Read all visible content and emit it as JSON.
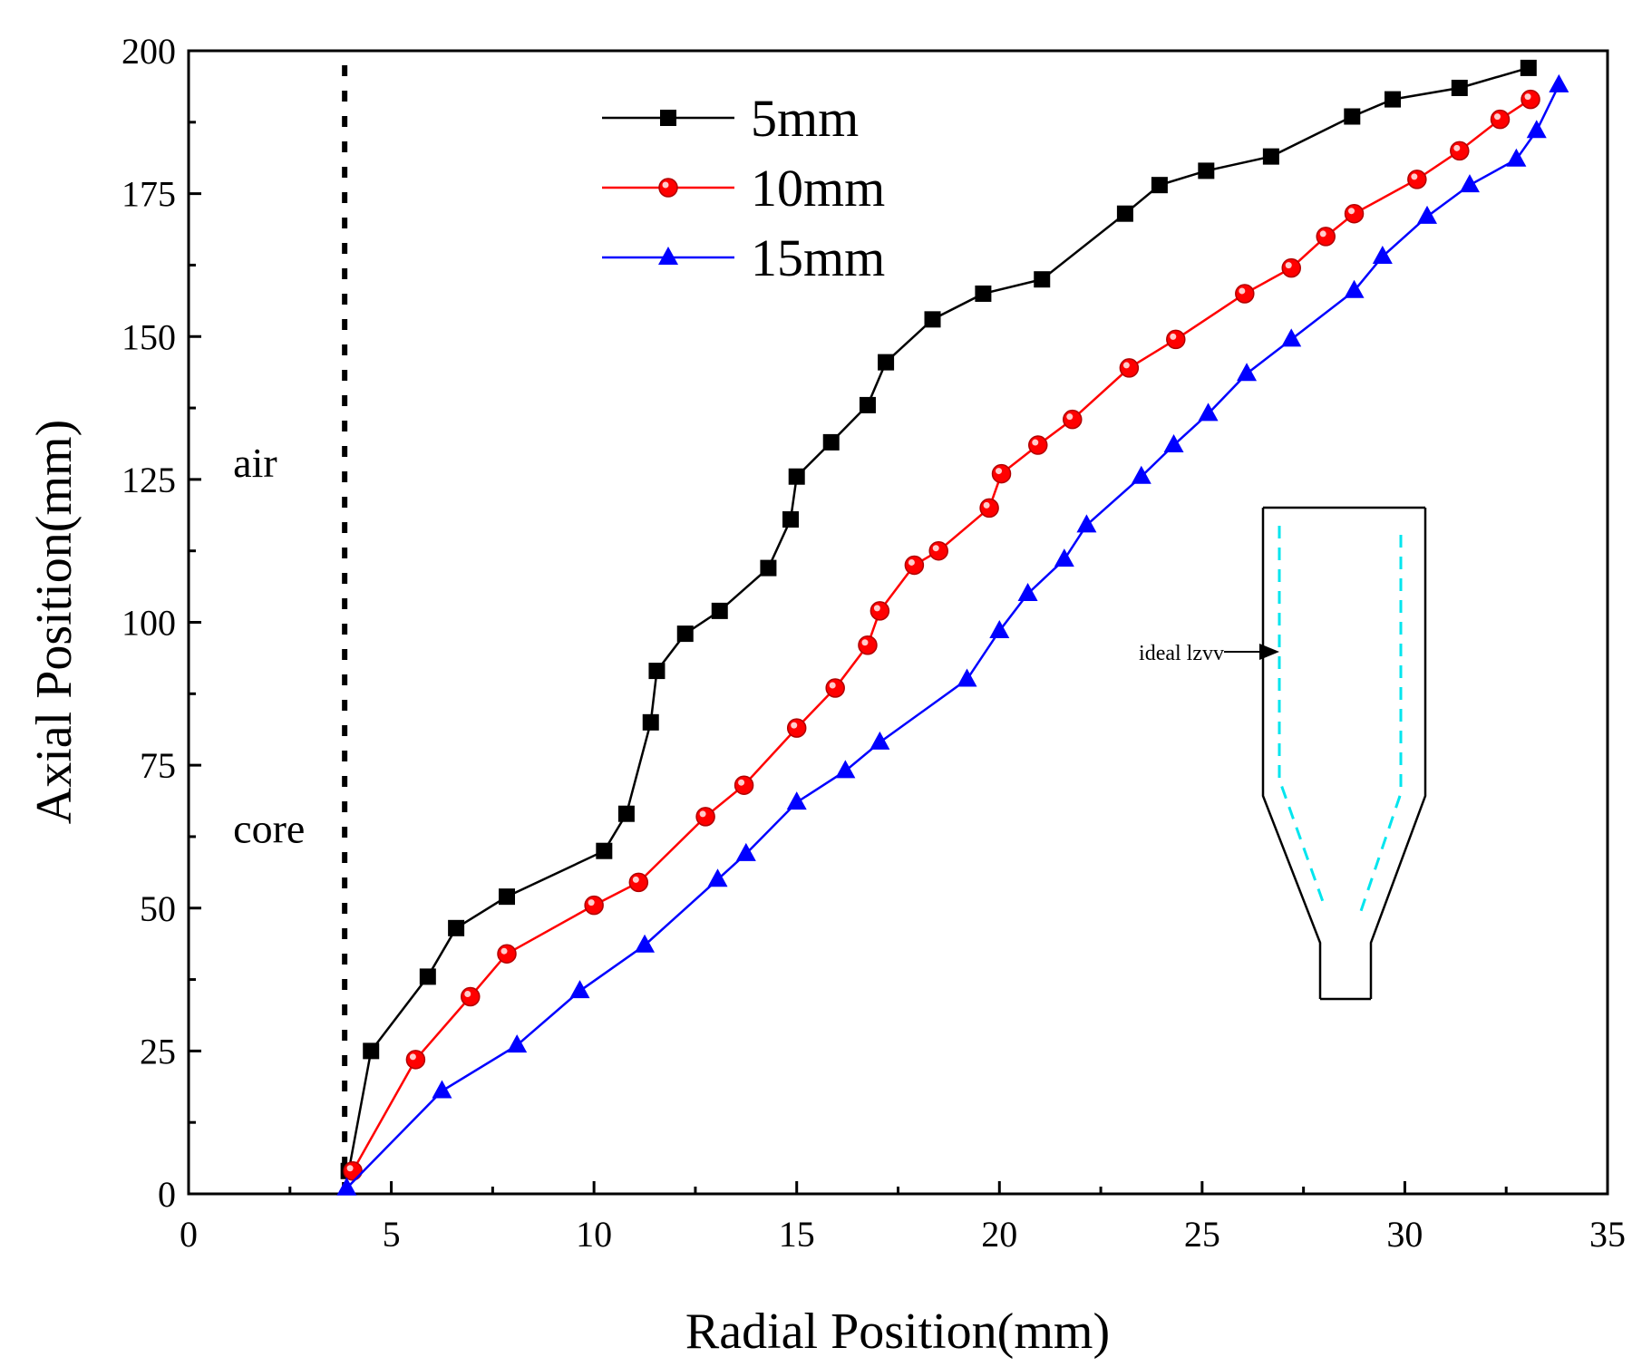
{
  "chart_data": {
    "type": "line",
    "title": "",
    "xlabel": "Radial Position(mm)",
    "ylabel": "Axial Position(mm)",
    "xlim": [
      0,
      35
    ],
    "ylim": [
      0,
      200
    ],
    "xticks": [
      0,
      5,
      10,
      15,
      20,
      25,
      30,
      35
    ],
    "yticks": [
      0,
      25,
      50,
      75,
      100,
      125,
      150,
      175,
      200
    ],
    "grid": false,
    "legend_position": "top-center",
    "series": [
      {
        "name": "5mm",
        "color": "#000000",
        "marker": "square",
        "x": [
          3.95,
          4.5,
          5.9,
          6.6,
          7.85,
          10.25,
          10.8,
          11.4,
          11.55,
          12.25,
          13.1,
          14.3,
          14.85,
          15.0,
          15.85,
          16.75,
          17.2,
          18.35,
          19.6,
          21.05,
          23.1,
          23.95,
          25.1,
          26.7,
          28.7,
          29.7,
          31.35,
          33.05
        ],
        "y": [
          4,
          25,
          38,
          46.5,
          52,
          60,
          66.5,
          82.5,
          91.5,
          98,
          102,
          109.5,
          118,
          125.5,
          131.5,
          138,
          145.5,
          153,
          157.5,
          160,
          171.5,
          176.5,
          179,
          181.5,
          188.5,
          191.5,
          193.5,
          197
        ]
      },
      {
        "name": "10mm",
        "color": "#ff0000",
        "marker": "circle",
        "x": [
          4.05,
          5.6,
          6.95,
          7.85,
          10.0,
          11.1,
          12.75,
          13.7,
          15.0,
          15.95,
          16.75,
          17.05,
          17.9,
          18.5,
          19.75,
          20.05,
          20.95,
          21.8,
          23.2,
          24.35,
          26.05,
          27.2,
          28.05,
          28.75,
          30.3,
          31.35,
          32.35,
          33.1
        ],
        "y": [
          4,
          23.5,
          34.5,
          42,
          50.5,
          54.5,
          66,
          71.5,
          81.5,
          88.5,
          96,
          102,
          110,
          112.5,
          120,
          126,
          131,
          135.5,
          144.5,
          149.5,
          157.5,
          162,
          167.5,
          171.5,
          177.5,
          182.5,
          188,
          191.5
        ]
      },
      {
        "name": "15mm",
        "color": "#0000ff",
        "marker": "triangle",
        "x": [
          3.9,
          6.25,
          8.1,
          9.65,
          11.25,
          13.05,
          13.75,
          15.0,
          16.2,
          17.05,
          19.2,
          20.0,
          20.7,
          21.6,
          22.15,
          23.5,
          24.3,
          25.15,
          26.1,
          27.2,
          28.75,
          29.45,
          30.55,
          31.6,
          32.75,
          33.25,
          33.8
        ],
        "y": [
          1,
          18,
          26,
          35.5,
          43.5,
          55,
          59.5,
          68.5,
          74,
          79,
          90,
          98.5,
          105,
          111,
          117,
          125.5,
          131,
          136.5,
          143.5,
          149.5,
          158,
          164,
          171,
          176.5,
          181,
          186,
          194
        ]
      }
    ],
    "reference_line": {
      "x": 3.85,
      "style": "dotted",
      "color": "#000000"
    },
    "annotations": [
      {
        "text": "air",
        "x": 1.1,
        "y": 128
      },
      {
        "text": "core",
        "x": 1.1,
        "y": 64
      }
    ],
    "inset": {
      "label": "ideal lzvv",
      "description": "nozzle schematic with dashed ideal profile",
      "profile_color": "#00e5ee"
    }
  }
}
